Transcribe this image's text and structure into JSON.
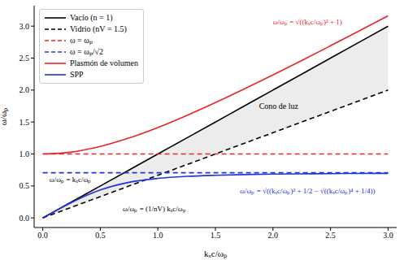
{
  "chart_data": {
    "type": "line",
    "x_label": "kₓc/ωₚ",
    "y_label": "ω/ωₚ",
    "x": [
      0,
      0.25,
      0.5,
      0.75,
      1,
      1.25,
      1.5,
      1.75,
      2,
      2.25,
      2.5,
      2.75,
      3
    ],
    "xlim": [
      -0.075,
      3.075
    ],
    "ylim": [
      -0.15,
      3.32
    ],
    "xticks": [
      {
        "value": 0,
        "label": "0.0"
      },
      {
        "value": 0.5,
        "label": "0.5"
      },
      {
        "value": 1,
        "label": "1.0"
      },
      {
        "value": 1.5,
        "label": "1.5"
      },
      {
        "value": 2,
        "label": "2.0"
      },
      {
        "value": 2.5,
        "label": "2.5"
      },
      {
        "value": 3,
        "label": "3.0"
      }
    ],
    "yticks": [
      {
        "value": 0,
        "label": "0.0"
      },
      {
        "value": 0.5,
        "label": "0.5"
      },
      {
        "value": 1,
        "label": "1.0"
      },
      {
        "value": 1.5,
        "label": "1.5"
      },
      {
        "value": 2,
        "label": "2.0"
      },
      {
        "value": 2.5,
        "label": "2.5"
      },
      {
        "value": 3,
        "label": "3.0"
      }
    ],
    "legend": "upper left",
    "series": [
      {
        "name": "Vacío (n = 1)",
        "color": "#000000",
        "line_style": "solid",
        "values": [
          0,
          0.25,
          0.5,
          0.75,
          1,
          1.25,
          1.5,
          1.75,
          2,
          2.25,
          2.5,
          2.75,
          3
        ]
      },
      {
        "name": "Vidrio (nV = 1.5)",
        "color": "#000000",
        "line_style": "dashed",
        "values": [
          0,
          0.167,
          0.333,
          0.5,
          0.667,
          0.833,
          1,
          1.167,
          1.333,
          1.5,
          1.667,
          1.833,
          2
        ]
      },
      {
        "name": "ω = ωₚ",
        "color": "#e8242b",
        "line_style": "dashed",
        "values": [
          1,
          1,
          1,
          1,
          1,
          1,
          1,
          1,
          1,
          1,
          1,
          1,
          1
        ]
      },
      {
        "name": "ω = ωₚ/√2",
        "color": "#2233dd",
        "line_style": "dashed",
        "values": [
          0.707,
          0.707,
          0.707,
          0.707,
          0.707,
          0.707,
          0.707,
          0.707,
          0.707,
          0.707,
          0.707,
          0.707,
          0.707
        ]
      },
      {
        "name": "Plasmón de volumen",
        "color": "#e8242b",
        "line_style": "solid",
        "values": [
          1,
          1.031,
          1.118,
          1.25,
          1.414,
          1.601,
          1.803,
          2.016,
          2.236,
          2.462,
          2.693,
          2.926,
          3.162
        ]
      },
      {
        "name": "SPP",
        "color": "#2233dd",
        "line_style": "solid",
        "values": [
          0,
          0.242,
          0.437,
          0.557,
          0.618,
          0.65,
          0.667,
          0.678,
          0.685,
          0.689,
          0.693,
          0.695,
          0.697
        ]
      }
    ],
    "shaded_region": {
      "label": "Cono de luz",
      "between": [
        "Vidrio (nV = 1.5)",
        "Vacío (n = 1)"
      ],
      "color": "#ececec"
    },
    "annotations": [
      {
        "text": "ω/ωₚ = √((kₓc/ωₚ)² + 1)",
        "color": "#e8242b"
      },
      {
        "text": "ω/ωₚ = √((kₓc/ωₚ)² + 1/2 − √((kₓc/ωₚ)⁴ + 1/4))",
        "color": "#2233dd"
      },
      {
        "text": "ω/ωₚ = kₓc/ωₚ",
        "color": "#000000"
      },
      {
        "text": "ω/ωₚ = (1/nV) kₓc/ωₚ",
        "color": "#000000"
      }
    ]
  }
}
